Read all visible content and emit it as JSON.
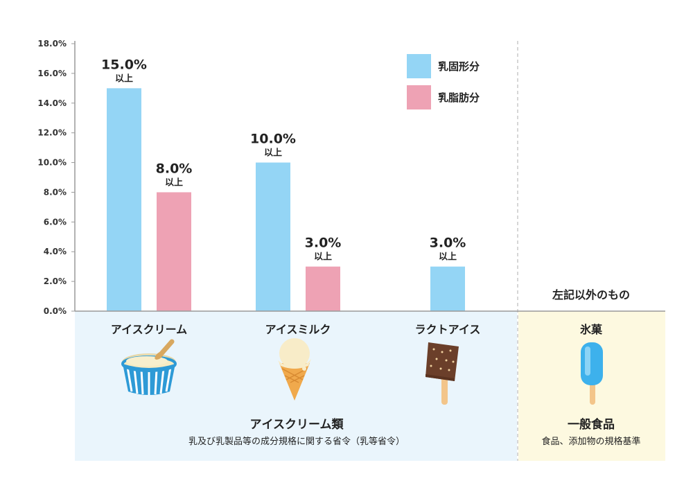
{
  "chart_data": {
    "type": "bar",
    "categories": [
      "アイスクリーム",
      "アイスミルク",
      "ラクトアイス"
    ],
    "series": [
      {
        "name": "乳固形分",
        "color": "#94d5f5",
        "values": [
          15.0,
          10.0,
          3.0
        ],
        "labels": [
          "15.0%",
          "10.0%",
          "3.0%"
        ]
      },
      {
        "name": "乳脂肪分",
        "color": "#eea2b4",
        "values": [
          8.0,
          3.0,
          null
        ],
        "labels": [
          "8.0%",
          "3.0%",
          ""
        ]
      }
    ],
    "label_suffix": "以上",
    "yticks": [
      "0.0%",
      "2.0%",
      "4.0%",
      "6.0%",
      "8.0%",
      "10.0%",
      "12.0%",
      "14.0%",
      "16.0%",
      "18.0%"
    ],
    "ylim": [
      0,
      18
    ],
    "legend": "top-right",
    "grid": false
  },
  "other": {
    "header": "左記以外のもの",
    "category": "氷菓"
  },
  "groups": {
    "ice_cream": {
      "title": "アイスクリーム類",
      "subtitle": "乳及び乳製品等の成分規格に関する省令（乳等省令）"
    },
    "general": {
      "title": "一般食品",
      "subtitle": "食品、添加物の規格基準"
    }
  },
  "icons": [
    "ice-cream-cup-icon",
    "soft-cone-icon",
    "chocolate-bar-icon",
    "ice-pop-icon"
  ],
  "colors": {
    "panel_blue": "#eaf5fc",
    "panel_yellow": "#fdf9e0",
    "axis": "#999999"
  }
}
